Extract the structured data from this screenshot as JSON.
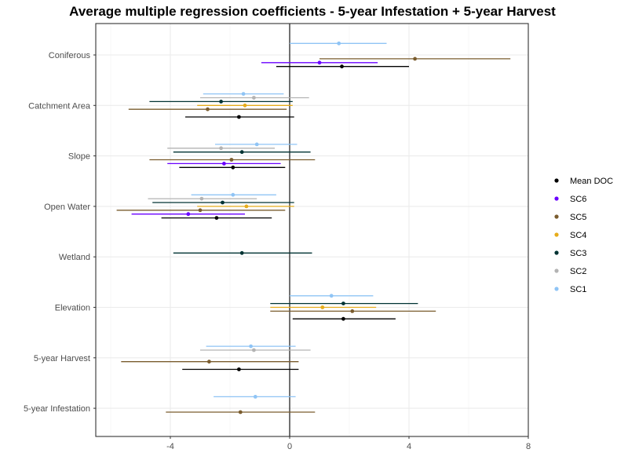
{
  "chart_data": {
    "type": "scatter",
    "title": "Average multiple regression coefficients - 5-year Infestation + 5-year Harvest",
    "xlabel": "",
    "ylabel": "",
    "xlim": [
      -6.5,
      8
    ],
    "xticks": [
      -4,
      0,
      4,
      8
    ],
    "xtick_labels": [
      "-4",
      "0",
      "4",
      "8"
    ],
    "vertical_reference_line": 0,
    "grid": true,
    "legend_position": "right",
    "categories": [
      "Coniferous",
      "Catchment Area",
      "Slope",
      "Open Water",
      "Wetland",
      "Elevation",
      "5-year Harvest",
      "5-year Infestation"
    ],
    "series": [
      {
        "name": "Mean DOC",
        "color": "#000000",
        "points": [
          {
            "category": "Coniferous",
            "estimate": 1.75,
            "lower": -0.45,
            "upper": 4.0
          },
          {
            "category": "Catchment Area",
            "estimate": -1.7,
            "lower": -3.5,
            "upper": 0.15
          },
          {
            "category": "Slope",
            "estimate": -1.9,
            "lower": -3.7,
            "upper": -0.15
          },
          {
            "category": "Open Water",
            "estimate": -2.45,
            "lower": -4.3,
            "upper": -0.6
          },
          {
            "category": "Elevation",
            "estimate": 1.8,
            "lower": 0.1,
            "upper": 3.55
          },
          {
            "category": "5-year Harvest",
            "estimate": -1.7,
            "lower": -3.6,
            "upper": 0.3
          }
        ]
      },
      {
        "name": "SC6",
        "color": "#6a00ff",
        "points": [
          {
            "category": "Coniferous",
            "estimate": 1.0,
            "lower": -0.95,
            "upper": 2.95
          },
          {
            "category": "Slope",
            "estimate": -2.2,
            "lower": -4.1,
            "upper": -0.3
          },
          {
            "category": "Open Water",
            "estimate": -3.4,
            "lower": -5.3,
            "upper": -1.5
          }
        ]
      },
      {
        "name": "SC5",
        "color": "#7a5c2e",
        "points": [
          {
            "category": "Coniferous",
            "estimate": 4.2,
            "lower": 1.0,
            "upper": 7.4
          },
          {
            "category": "Catchment Area",
            "estimate": -2.75,
            "lower": -5.4,
            "upper": -0.1
          },
          {
            "category": "Slope",
            "estimate": -1.95,
            "lower": -4.7,
            "upper": 0.85
          },
          {
            "category": "Open Water",
            "estimate": -3.0,
            "lower": -5.8,
            "upper": -0.15
          },
          {
            "category": "Elevation",
            "estimate": 2.1,
            "lower": -0.65,
            "upper": 4.9
          },
          {
            "category": "5-year Harvest",
            "estimate": -2.7,
            "lower": -5.65,
            "upper": 0.3
          },
          {
            "category": "5-year Infestation",
            "estimate": -1.65,
            "lower": -4.15,
            "upper": 0.85
          }
        ]
      },
      {
        "name": "SC4",
        "color": "#e6ac1a",
        "points": [
          {
            "category": "Catchment Area",
            "estimate": -1.5,
            "lower": -3.1,
            "upper": 0.1
          },
          {
            "category": "Open Water",
            "estimate": -1.45,
            "lower": -3.1,
            "upper": 0.15
          },
          {
            "category": "Elevation",
            "estimate": 1.1,
            "lower": -0.65,
            "upper": 2.9
          }
        ]
      },
      {
        "name": "SC3",
        "color": "#003333",
        "points": [
          {
            "category": "Catchment Area",
            "estimate": -2.3,
            "lower": -4.7,
            "upper": 0.1
          },
          {
            "category": "Slope",
            "estimate": -1.6,
            "lower": -3.9,
            "upper": 0.7
          },
          {
            "category": "Open Water",
            "estimate": -2.25,
            "lower": -4.6,
            "upper": 0.15
          },
          {
            "category": "Wetland",
            "estimate": -1.6,
            "lower": -3.9,
            "upper": 0.75
          },
          {
            "category": "Elevation",
            "estimate": 1.8,
            "lower": -0.65,
            "upper": 4.3
          }
        ]
      },
      {
        "name": "SC2",
        "color": "#b3b3b3",
        "points": [
          {
            "category": "Catchment Area",
            "estimate": -1.2,
            "lower": -3.0,
            "upper": 0.65
          },
          {
            "category": "Slope",
            "estimate": -2.3,
            "lower": -4.1,
            "upper": -0.5
          },
          {
            "category": "Open Water",
            "estimate": -2.95,
            "lower": -4.75,
            "upper": -1.1
          },
          {
            "category": "5-year Harvest",
            "estimate": -1.2,
            "lower": -3.0,
            "upper": 0.7
          }
        ]
      },
      {
        "name": "SC1",
        "color": "#8fc4f5",
        "points": [
          {
            "category": "Coniferous",
            "estimate": 1.65,
            "lower": 0.0,
            "upper": 3.25
          },
          {
            "category": "Catchment Area",
            "estimate": -1.55,
            "lower": -2.9,
            "upper": -0.2
          },
          {
            "category": "Slope",
            "estimate": -1.1,
            "lower": -2.5,
            "upper": 0.25
          },
          {
            "category": "Open Water",
            "estimate": -1.9,
            "lower": -3.3,
            "upper": -0.45
          },
          {
            "category": "Elevation",
            "estimate": 1.4,
            "lower": 0.0,
            "upper": 2.8
          },
          {
            "category": "5-year Harvest",
            "estimate": -1.3,
            "lower": -2.8,
            "upper": 0.2
          },
          {
            "category": "5-year Infestation",
            "estimate": -1.15,
            "lower": -2.55,
            "upper": 0.2
          }
        ]
      }
    ]
  }
}
